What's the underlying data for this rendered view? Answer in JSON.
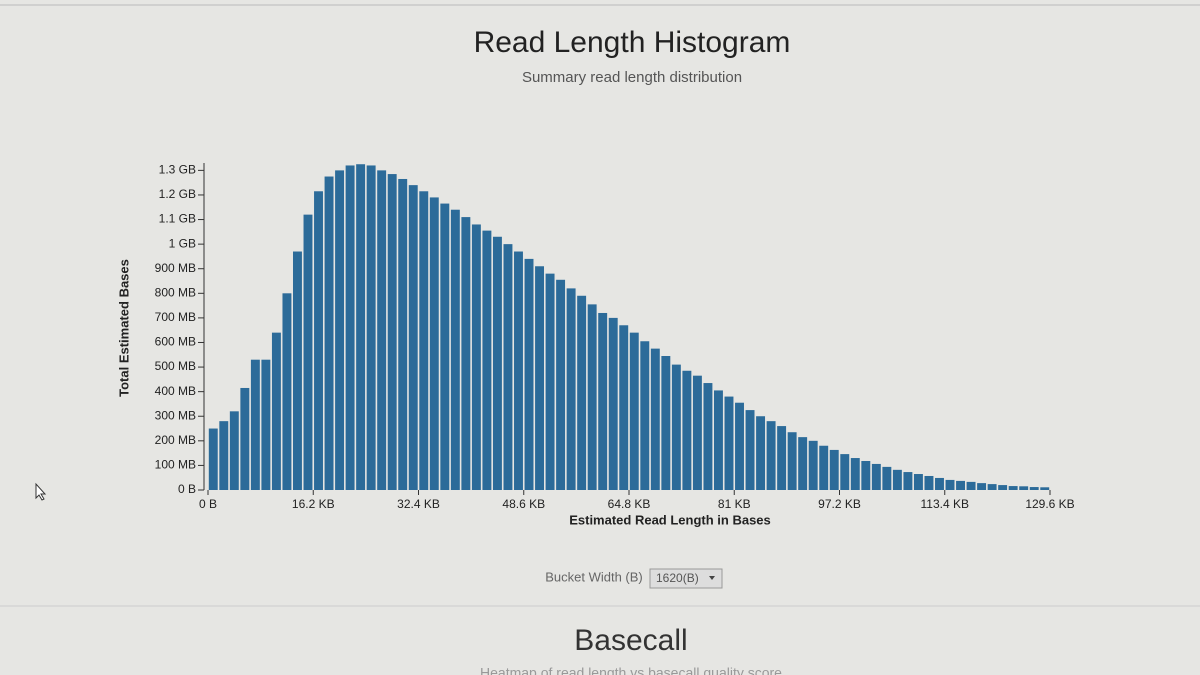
{
  "chart_data": {
    "type": "histogram",
    "title": "Read Length Histogram",
    "subtitle": "Summary read length distribution",
    "x_label": "Estimated Read Length in Bases",
    "y_label": "Total Estimated Bases",
    "color": "#2c6b99",
    "bins": [
      0,
      1.62,
      3.24,
      4.86,
      6.48,
      8.1,
      9.72,
      11.34,
      12.96,
      14.58,
      16.2,
      17.82,
      19.44,
      21.06,
      22.68,
      24.3,
      25.92,
      27.54,
      29.16,
      30.78,
      32.4,
      34.02,
      35.64,
      37.26,
      38.88,
      40.5,
      42.12,
      43.74,
      45.36,
      46.98,
      48.6,
      50.22,
      51.84,
      53.46,
      55.08,
      56.7,
      58.32,
      59.94,
      61.56,
      63.18,
      64.8,
      66.42,
      68.04,
      69.66,
      71.28,
      72.9,
      74.52,
      76.14,
      77.76,
      79.38,
      81,
      82.62,
      84.24,
      85.86,
      87.48,
      89.1,
      90.72,
      92.34,
      93.96,
      95.58,
      97.2,
      98.82,
      100.44,
      102.06,
      103.68,
      105.3,
      106.92,
      108.54,
      110.16,
      111.78,
      113.4,
      115.02,
      116.64,
      118.26,
      119.88,
      121.5,
      123.12,
      124.74,
      126.36,
      127.98,
      129.6
    ],
    "values": [
      250,
      280,
      320,
      415,
      530,
      530,
      640,
      800,
      970,
      1120,
      1215,
      1275,
      1300,
      1320,
      1325,
      1320,
      1300,
      1285,
      1265,
      1240,
      1215,
      1190,
      1165,
      1140,
      1110,
      1080,
      1055,
      1030,
      1000,
      970,
      940,
      910,
      880,
      855,
      820,
      790,
      755,
      720,
      700,
      670,
      640,
      605,
      575,
      545,
      510,
      485,
      465,
      435,
      405,
      380,
      355,
      325,
      300,
      280,
      260,
      235,
      215,
      200,
      180,
      163,
      146,
      130,
      118,
      106,
      94,
      82,
      73,
      65,
      57,
      49,
      41,
      37,
      33,
      28,
      24,
      20,
      16,
      15,
      12,
      11
    ],
    "xlim": [
      0,
      129.6
    ],
    "ylim": [
      0,
      1330
    ],
    "xticks": [
      {
        "value": 0,
        "label": "0 B"
      },
      {
        "value": 16.2,
        "label": "16.2 KB"
      },
      {
        "value": 32.4,
        "label": "32.4 KB"
      },
      {
        "value": 48.6,
        "label": "48.6 KB"
      },
      {
        "value": 64.8,
        "label": "64.8 KB"
      },
      {
        "value": 81,
        "label": "81 KB"
      },
      {
        "value": 97.2,
        "label": "97.2 KB"
      },
      {
        "value": 113.4,
        "label": "113.4 KB"
      },
      {
        "value": 129.6,
        "label": "129.6 KB"
      }
    ],
    "yticks": [
      {
        "value": 0,
        "label": "0 B"
      },
      {
        "value": 100,
        "label": "100 MB"
      },
      {
        "value": 200,
        "label": "200 MB"
      },
      {
        "value": 300,
        "label": "300 MB"
      },
      {
        "value": 400,
        "label": "400 MB"
      },
      {
        "value": 500,
        "label": "500 MB"
      },
      {
        "value": 600,
        "label": "600 MB"
      },
      {
        "value": 700,
        "label": "700 MB"
      },
      {
        "value": 800,
        "label": "800 MB"
      },
      {
        "value": 900,
        "label": "900 MB"
      },
      {
        "value": 1000,
        "label": "1 GB"
      },
      {
        "value": 1100,
        "label": "1.1 GB"
      },
      {
        "value": 1200,
        "label": "1.2 GB"
      },
      {
        "value": 1300,
        "label": "1.3 GB"
      }
    ]
  },
  "controls": {
    "bucket_label": "Bucket Width (B)",
    "bucket_value": "1620(B)"
  },
  "next_section": {
    "title": "Basecall",
    "subtitle": "Heatmap of read length vs basecall quality score"
  }
}
